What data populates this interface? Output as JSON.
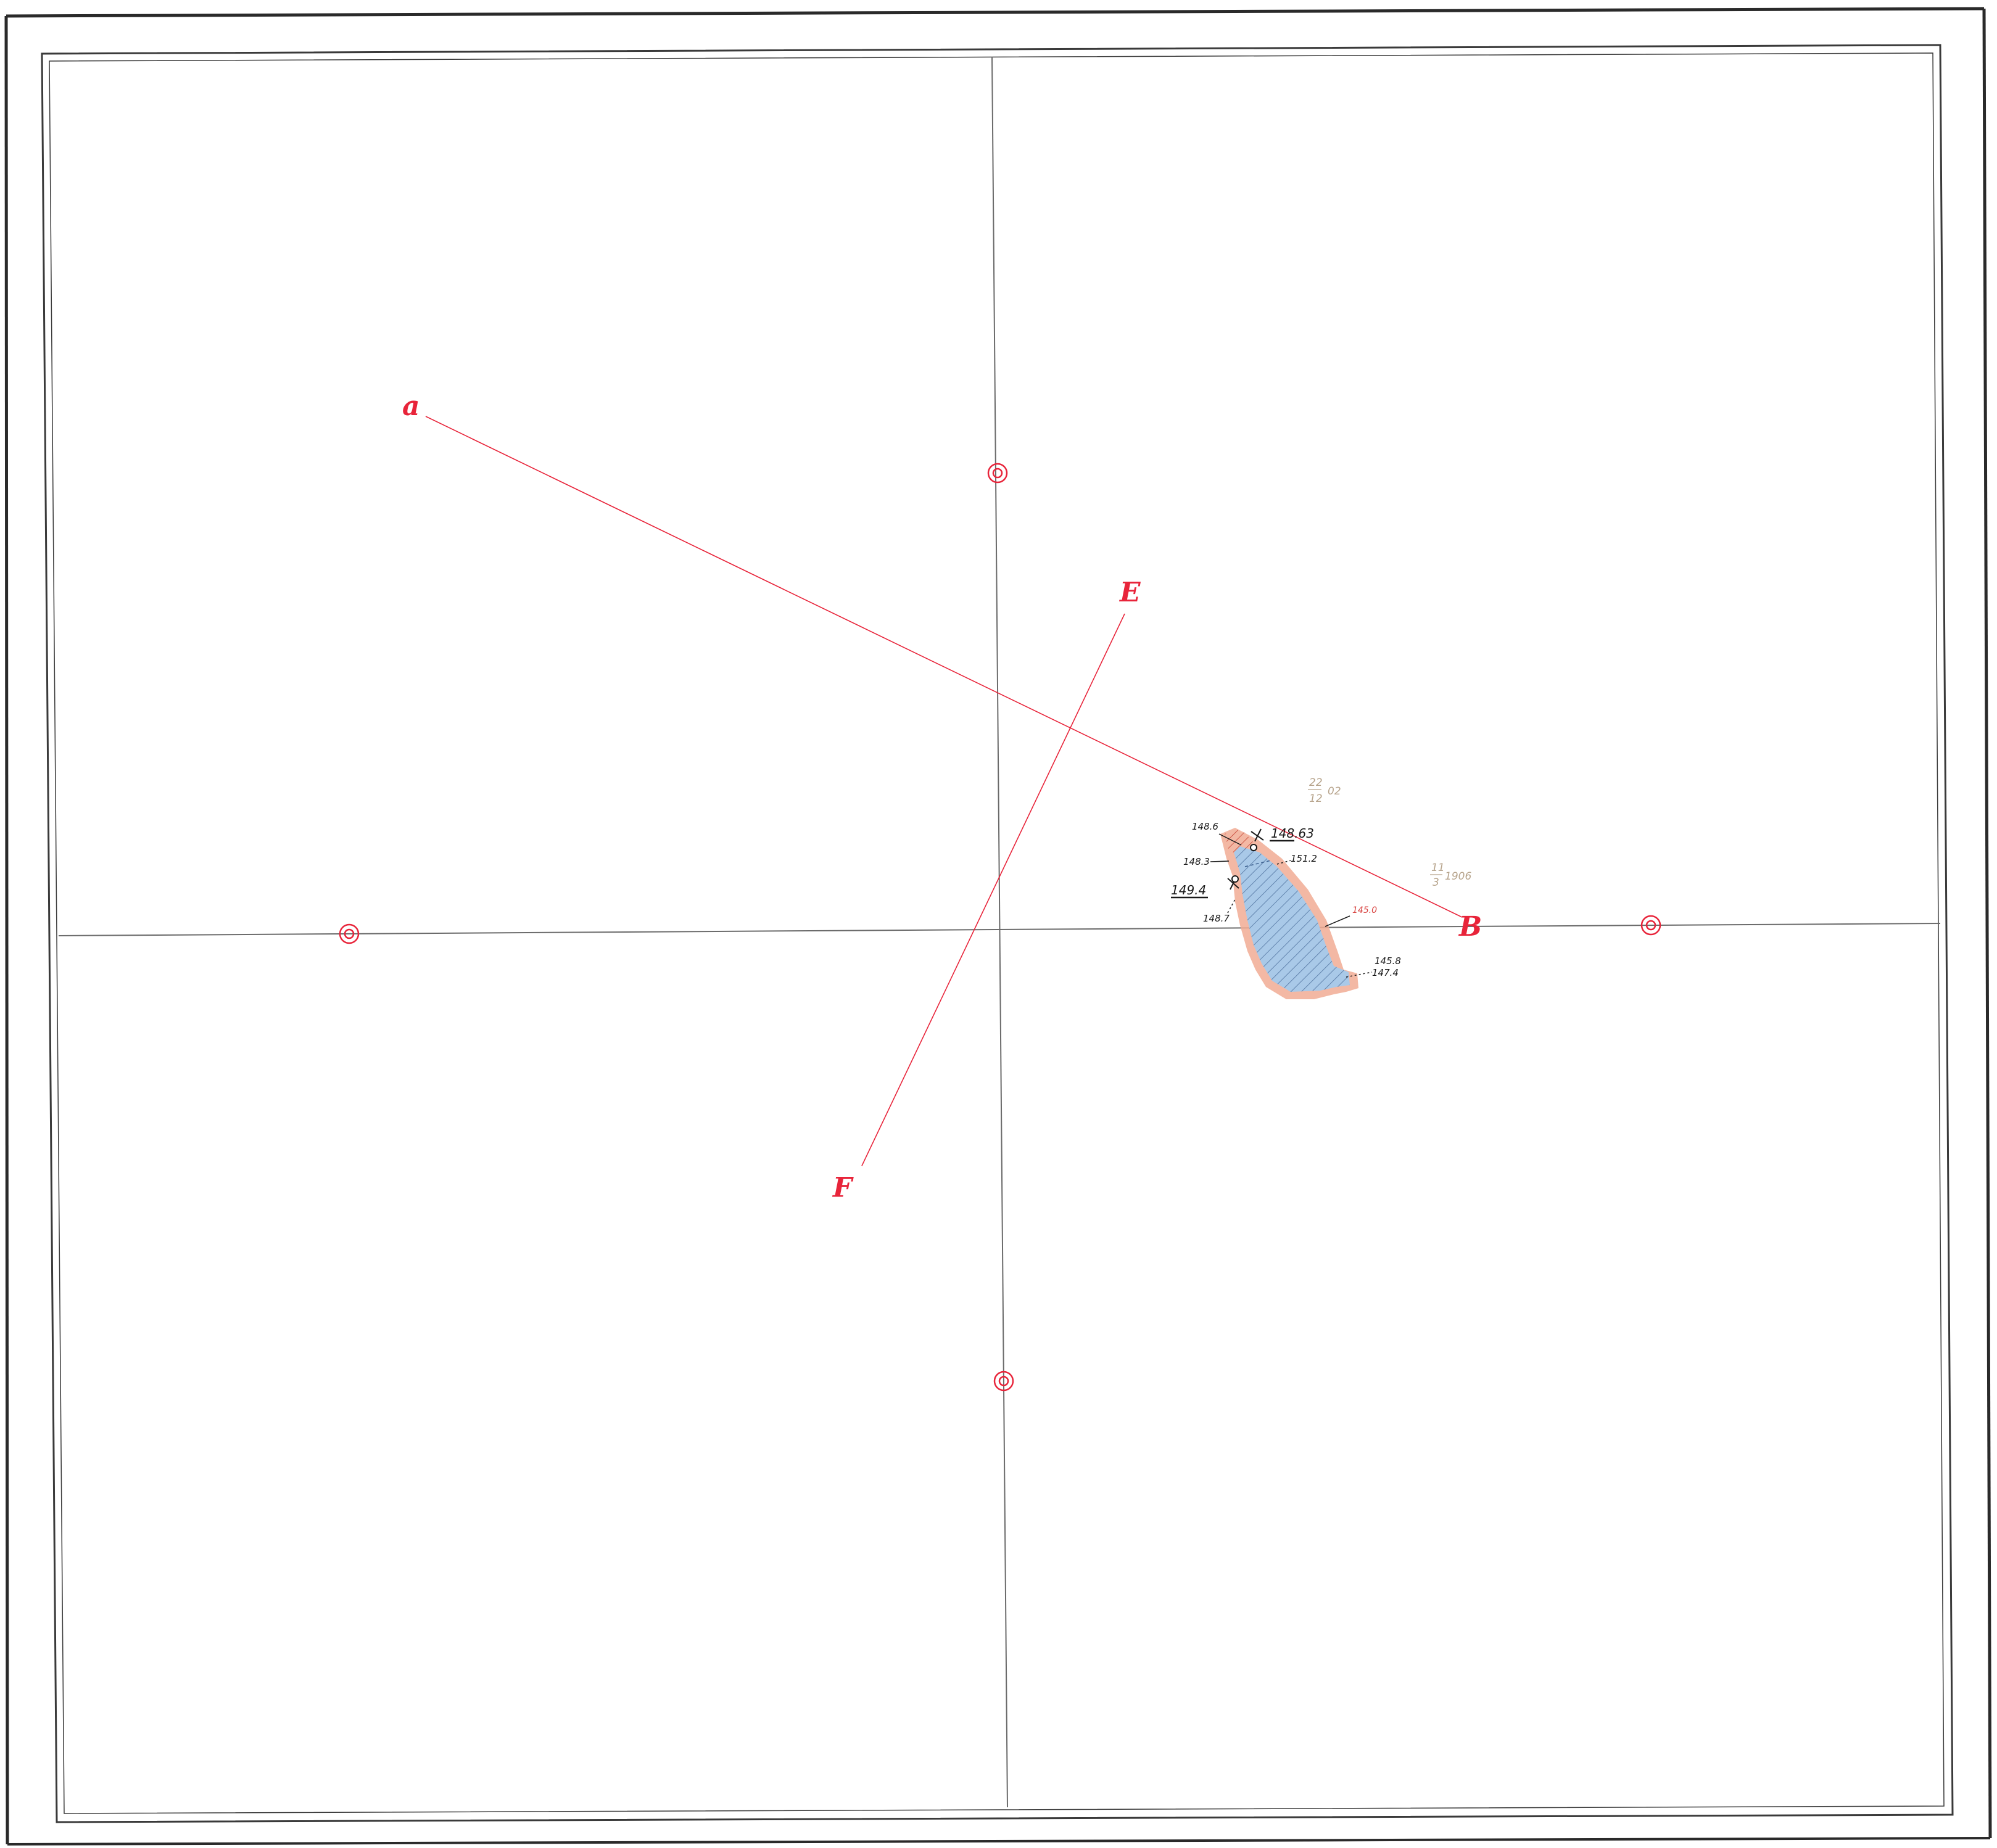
{
  "map": {
    "station_labels": {
      "a": "a",
      "b": "B",
      "e": "E",
      "f": "F"
    },
    "elevations": {
      "e148_6": "148.6",
      "e148_63": "148.63",
      "e148_3": "148.3",
      "e151_2": "151.2",
      "e149_4": "149.4",
      "e148_7": "148.7",
      "e145_0": "145.0",
      "e145_8": "145.8",
      "e147_4": "147.4"
    },
    "dates": {
      "date1_top": "22",
      "date1_bottom": "12",
      "date1_year": "02",
      "date2_top": "11",
      "date2_bottom": "3",
      "date2_year": "1906"
    },
    "colors": {
      "survey_line": "#e8243a",
      "grid_line": "#6b6b6b",
      "water_fill": "#a9c9e8",
      "water_hatch": "#3b5f8e",
      "shore_fill": "#f1ab94",
      "frame": "#2a2a2a"
    }
  }
}
